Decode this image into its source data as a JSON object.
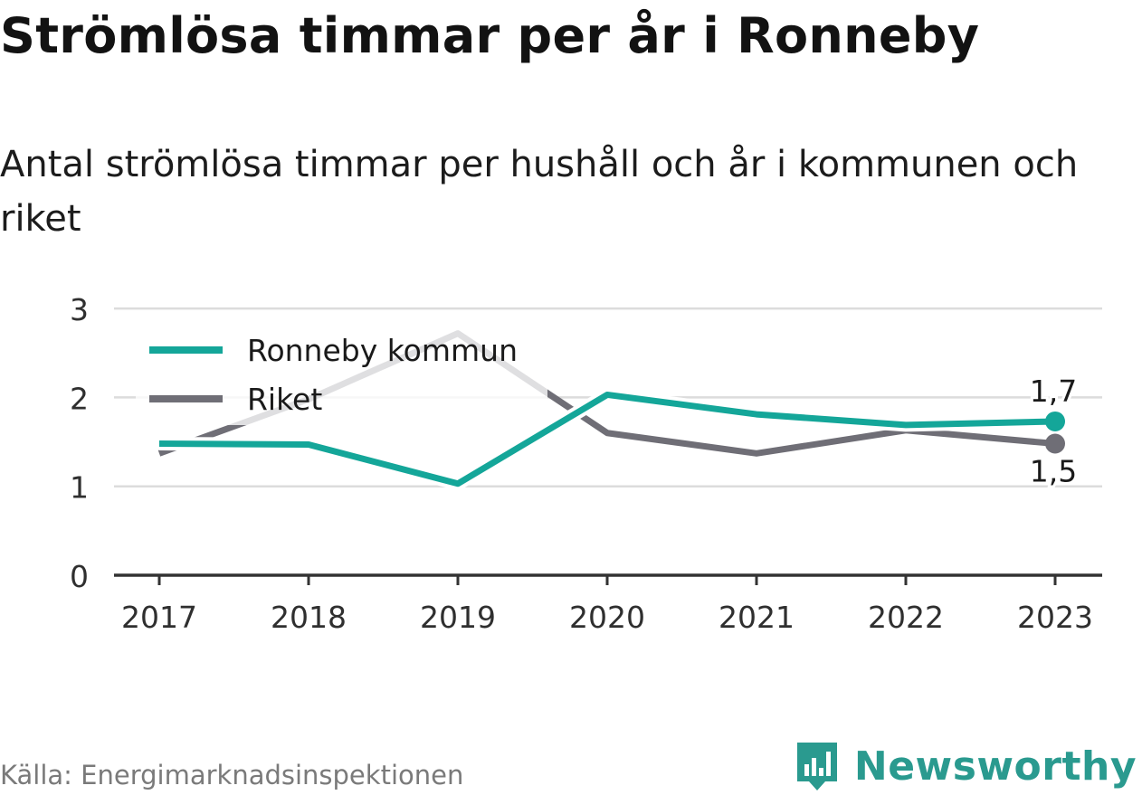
{
  "title": "Strömlösa timmar per år i Ronneby",
  "subtitle": "Antal strömlösa timmar per hushåll och år i kommunen och riket",
  "source": "Källa: Energimarknadsinspektionen",
  "brand": {
    "name": "Newsworthy",
    "icon": "bar-chart-bubble-icon",
    "color": "#2a9a8f"
  },
  "chart_data": {
    "type": "line",
    "x": [
      "2017",
      "2018",
      "2019",
      "2020",
      "2021",
      "2022",
      "2023"
    ],
    "ylim": [
      0,
      3
    ],
    "yticks": [
      "0",
      "1",
      "2",
      "3"
    ],
    "grid": true,
    "legend_position": "top-left",
    "series": [
      {
        "name": "Ronneby kommun",
        "color": "#14a699",
        "values": [
          1.48,
          1.47,
          1.03,
          2.03,
          1.81,
          1.69,
          1.73
        ],
        "end_label": "1,7"
      },
      {
        "name": "Riket",
        "color": "#6f6e76",
        "values": [
          1.37,
          1.98,
          2.72,
          1.6,
          1.37,
          1.63,
          1.48
        ],
        "end_label": "1,5"
      }
    ]
  }
}
